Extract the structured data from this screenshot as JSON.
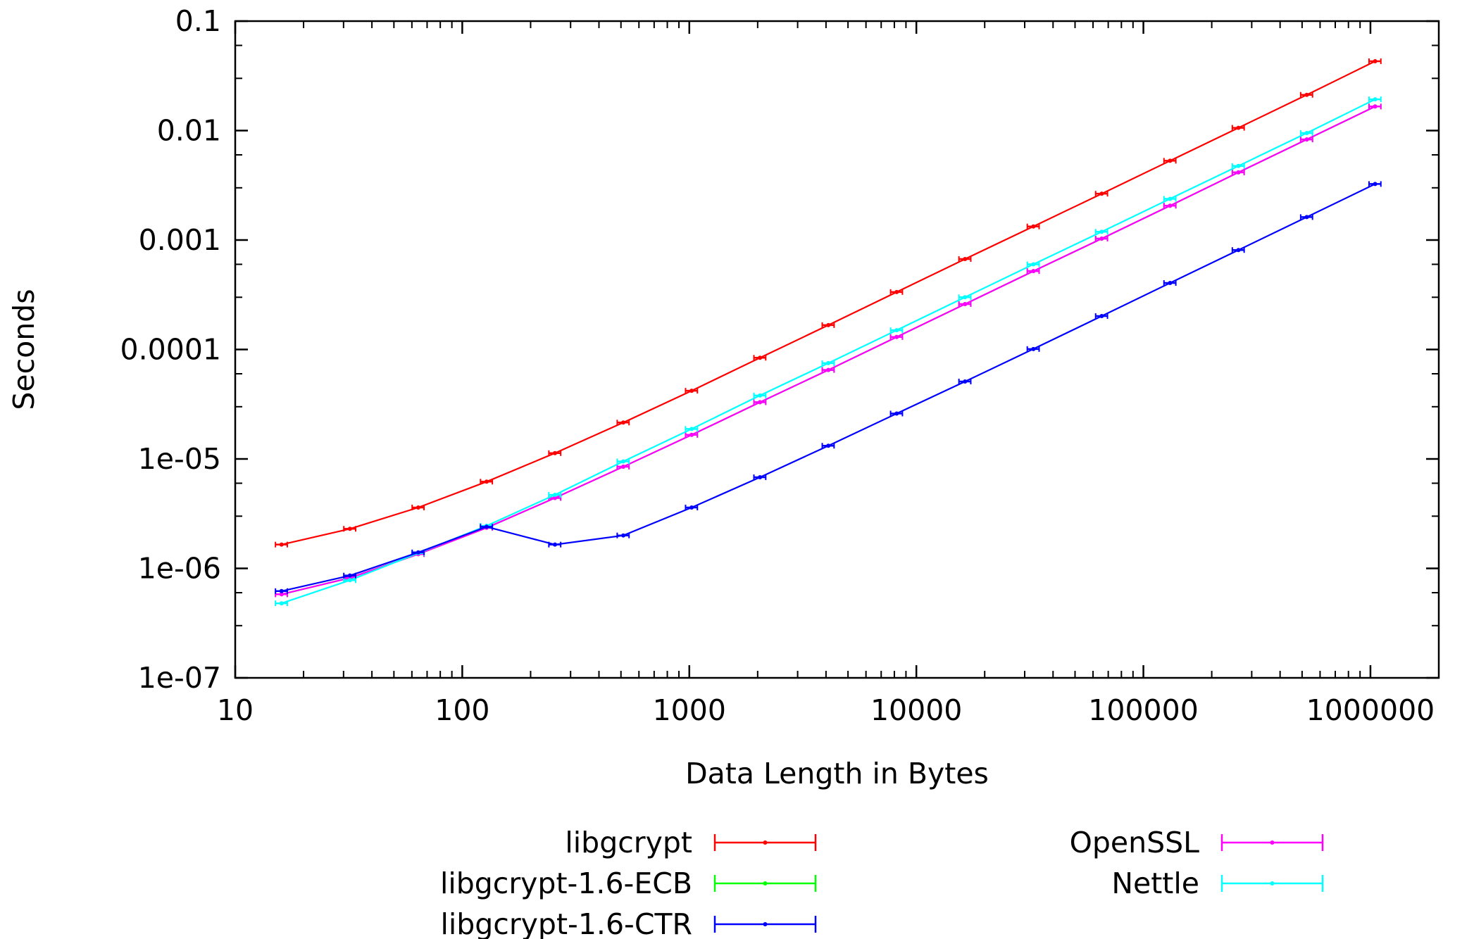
{
  "chart_data": {
    "type": "line",
    "xlabel": "Data Length in Bytes",
    "ylabel": "Seconds",
    "x_scale": "log",
    "y_scale": "log",
    "xlim": [
      10,
      2000000
    ],
    "ylim": [
      1e-07,
      0.1
    ],
    "x_ticks": [
      10,
      100,
      1000,
      10000,
      100000,
      1000000
    ],
    "x_tick_labels": [
      "10",
      "100",
      "1000",
      "10000",
      "100000",
      "1000000"
    ],
    "y_ticks": [
      1e-07,
      1e-06,
      1e-05,
      0.0001,
      0.001,
      0.01,
      0.1
    ],
    "y_tick_labels": [
      "1e-07",
      "1e-06",
      "1e-05",
      "0.0001",
      "0.001",
      "0.01",
      "0.1"
    ],
    "grid": false,
    "legend_position": "bottom",
    "x": [
      16,
      32,
      64,
      128,
      256,
      512,
      1024,
      2048,
      4096,
      8192,
      16384,
      32768,
      65536,
      131072,
      262144,
      524288,
      1048576
    ],
    "series": [
      {
        "name": "libgcrypt",
        "color": "#ff0000",
        "values": [
          1.65e-06,
          2.3e-06,
          3.6e-06,
          6.2e-06,
          1.13e-05,
          2.15e-05,
          4.2e-05,
          8.4e-05,
          0.000167,
          0.000335,
          0.00067,
          0.00133,
          0.00265,
          0.0053,
          0.0106,
          0.0212,
          0.043
        ]
      },
      {
        "name": "libgcrypt-1.6-ECB",
        "color": "#00ff00",
        "values": [
          5.8e-07,
          8.2e-07,
          1.35e-06,
          2.35e-06,
          4.4e-06,
          8.5e-06,
          1.66e-05,
          3.3e-05,
          6.5e-05,
          0.00013,
          0.00026,
          0.00052,
          0.00103,
          0.00206,
          0.00415,
          0.0083,
          0.0166
        ]
      },
      {
        "name": "libgcrypt-1.6-CTR",
        "color": "#0000ff",
        "values": [
          6.2e-07,
          8.6e-07,
          1.4e-06,
          2.4e-06,
          1.65e-06,
          2e-06,
          3.6e-06,
          6.8e-06,
          1.32e-05,
          2.6e-05,
          5.1e-05,
          0.000101,
          0.000202,
          0.000405,
          0.00081,
          0.00162,
          0.00325
        ]
      },
      {
        "name": "OpenSSL",
        "color": "#ff00ff",
        "values": [
          5.8e-07,
          8.2e-07,
          1.35e-06,
          2.35e-06,
          4.4e-06,
          8.5e-06,
          1.66e-05,
          3.3e-05,
          6.5e-05,
          0.00013,
          0.00026,
          0.00052,
          0.00103,
          0.00206,
          0.00415,
          0.0083,
          0.0166
        ]
      },
      {
        "name": "Nettle",
        "color": "#00ffff",
        "values": [
          4.8e-07,
          7.8e-07,
          1.38e-06,
          2.45e-06,
          4.7e-06,
          9.5e-06,
          1.88e-05,
          3.8e-05,
          7.5e-05,
          0.00015,
          0.0003,
          0.0006,
          0.00119,
          0.00238,
          0.00475,
          0.0095,
          0.0193
        ]
      }
    ]
  }
}
